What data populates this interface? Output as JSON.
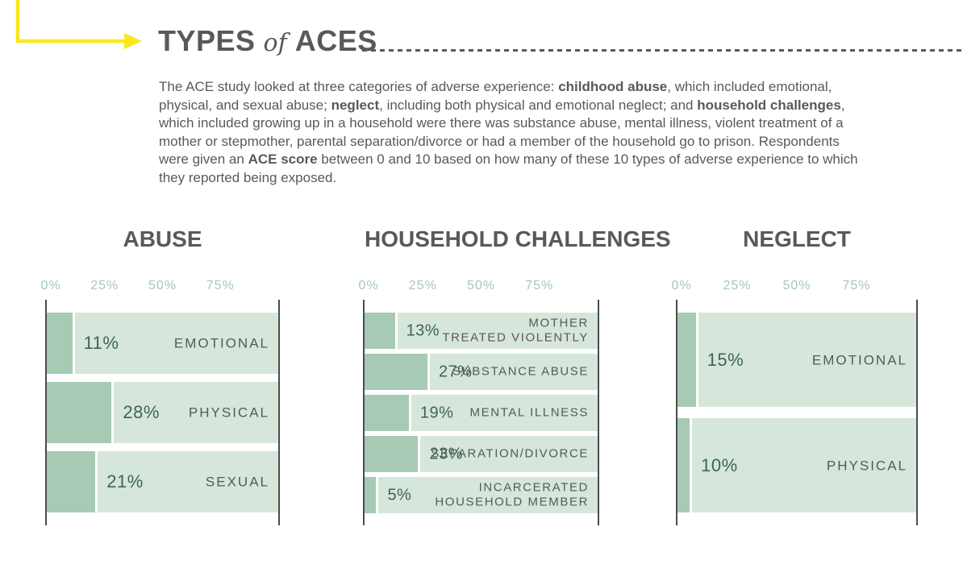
{
  "header": {
    "title_parts": [
      {
        "text": "TYPES",
        "cls": "t-bold"
      },
      {
        "text": "of",
        "cls": "t-italic"
      },
      {
        "text": "ACES",
        "cls": "t-bold"
      }
    ],
    "arrow_color": "#fbe71e",
    "rule_color": "#58595b"
  },
  "intro": {
    "segments": [
      {
        "text": "The ACE study looked at three categories of adverse experience: "
      },
      {
        "text": "childhood abuse",
        "bold": true
      },
      {
        "text": ", which included emotional, physical, and sexual abuse; "
      },
      {
        "text": "neglect",
        "bold": true
      },
      {
        "text": ", including both physical and emotional neglect; and "
      },
      {
        "text": "household challenges",
        "bold": true
      },
      {
        "text": ", which included growing up in a household were there was substance abuse, mental illness, violent treatment of a mother or stepmother, parental separation/divorce or had a member of the household go to prison. Respondents were given an "
      },
      {
        "text": "ACE score",
        "bold": true
      },
      {
        "text": " between 0 and 10 based on how many of these 10 types of adverse experience to which they reported being exposed."
      }
    ]
  },
  "colors": {
    "bar_fill": "#a6cab3",
    "bar_track": "#d6e6db",
    "value_text": "#3e6457",
    "category_text": "#57585a",
    "tick_text": "#a4c9b1",
    "axis_line": "#4c4c4e",
    "heading_text": "#58595b",
    "accent_yellow": "#fbe71e"
  },
  "chart_data": [
    {
      "type": "bar",
      "title": "ABUSE",
      "orientation": "horizontal",
      "x_ticks": [
        "0%",
        "25%",
        "50%",
        "75%"
      ],
      "x_range": [
        0,
        100
      ],
      "grid": false,
      "legend": false,
      "bar_scale": 1,
      "bars": [
        {
          "label": "EMOTIONAL",
          "value": 11,
          "value_label": "11%"
        },
        {
          "label": "PHYSICAL",
          "value": 28,
          "value_label": "28%"
        },
        {
          "label": "SEXUAL",
          "value": 21,
          "value_label": "21%"
        }
      ]
    },
    {
      "type": "bar",
      "title": "HOUSEHOLD CHALLENGES",
      "orientation": "horizontal",
      "x_ticks": [
        "0%",
        "25%",
        "50%",
        "75%"
      ],
      "x_range": [
        0,
        100
      ],
      "grid": false,
      "legend": false,
      "bar_scale": 1,
      "bars": [
        {
          "label": "MOTHER\nTREATED VIOLENTLY",
          "value": 13,
          "value_label": "13%"
        },
        {
          "label": "SUBSTANCE ABUSE",
          "value": 27,
          "value_label": "27%"
        },
        {
          "label": "MENTAL ILLNESS",
          "value": 19,
          "value_label": "19%"
        },
        {
          "label": "SEPARATION/DIVORCE",
          "value": 23,
          "value_label": "23%"
        },
        {
          "label": "INCARCERATED\nHOUSEHOLD MEMBER",
          "value": 5,
          "value_label": "5%"
        }
      ]
    },
    {
      "type": "bar",
      "title": "NEGLECT",
      "orientation": "horizontal",
      "x_ticks": [
        "0%",
        "25%",
        "50%",
        "75%"
      ],
      "x_range": [
        0,
        100
      ],
      "grid": false,
      "legend": false,
      "bar_scale": 0.51,
      "bars": [
        {
          "label": "EMOTIONAL",
          "value": 15,
          "value_label": "15%"
        },
        {
          "label": "PHYSICAL",
          "value": 10,
          "value_label": "10%"
        }
      ]
    }
  ]
}
